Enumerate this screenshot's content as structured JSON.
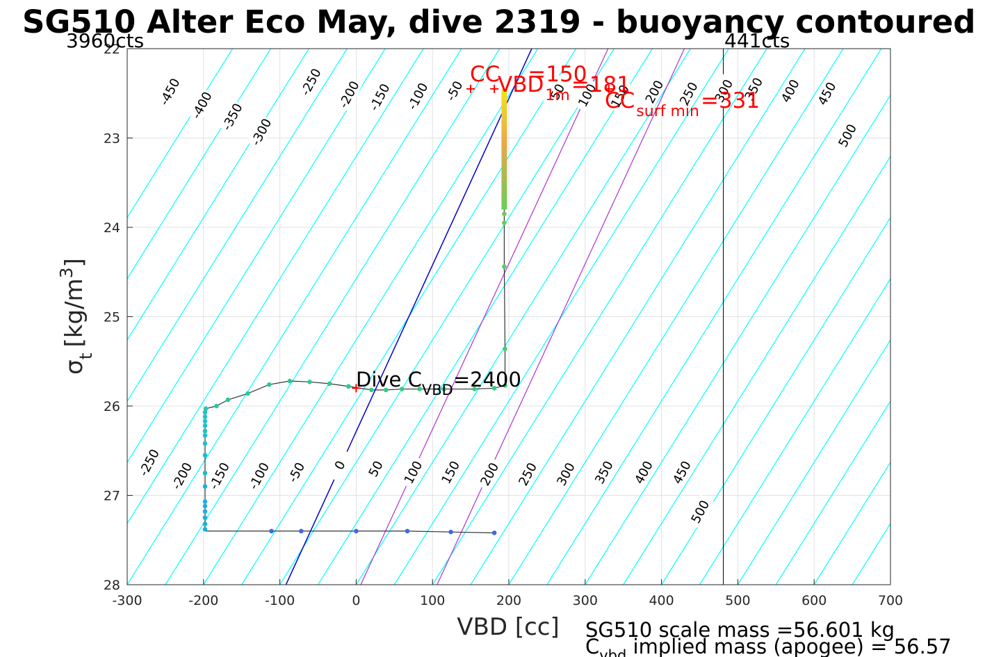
{
  "title": "SG510 Alter Eco May, dive 2319 - buoyancy contoured",
  "counts_left": "3960cts",
  "counts_right": "441cts",
  "xlabel": "VBD [cc]",
  "ylabel_sigma": "σ",
  "ylabel_sub": "t",
  "ylabel_units": "[kg/m",
  "ylabel_sup": "3",
  "ylabel_close": "]",
  "annotations": {
    "cc_label": "CC",
    "cc_value": "=150",
    "vbd_label": "VBD",
    "vbd_sub": "1m",
    "vbd_value": "=181",
    "ccsurf_label": "CC",
    "ccsurf_sub": "surf min",
    "ccsurf_value": "=331",
    "dive_label": "Dive C",
    "dive_sub": "VBD",
    "dive_value": "=2400"
  },
  "footer": {
    "line1": "SG510 scale mass =56.601 kg",
    "line2_prefix": "C",
    "line2_sub": "vbd",
    "line2_rest": " implied mass (apogee) = 56.57"
  },
  "colors": {
    "contour": "#00ffff",
    "blue_line": "#0000cc",
    "magenta_line": "#b030d0",
    "red": "#ff0000",
    "axis": "#262626"
  },
  "chart_data": {
    "type": "scatter",
    "xlim": [
      -300,
      700
    ],
    "ylim": [
      22,
      28
    ],
    "y_reversed": true,
    "xticks": [
      -300,
      -200,
      -100,
      0,
      100,
      200,
      300,
      400,
      500,
      600,
      700
    ],
    "yticks": [
      22,
      23,
      24,
      25,
      26,
      27,
      28
    ],
    "grid": true,
    "contour_slope_cc_per_unit": -73,
    "contour_levels": [
      -450,
      -400,
      -350,
      -300,
      -250,
      -200,
      -150,
      -100,
      -50,
      0,
      50,
      100,
      150,
      200,
      250,
      300,
      350,
      400,
      450,
      500
    ],
    "contour_labels_top": [
      {
        "level": "-450",
        "x": -245,
        "y": 22.48
      },
      {
        "level": "-400",
        "x": -203,
        "y": 22.63
      },
      {
        "level": "-350",
        "x": -163,
        "y": 22.76
      },
      {
        "level": "-300",
        "x": -125,
        "y": 22.93
      },
      {
        "level": "-250",
        "x": -60,
        "y": 22.37
      },
      {
        "level": "-200",
        "x": -10,
        "y": 22.51
      },
      {
        "level": "-150",
        "x": 30,
        "y": 22.54
      },
      {
        "level": "-100",
        "x": 80,
        "y": 22.53
      },
      {
        "level": "-50",
        "x": 128,
        "y": 22.47
      },
      {
        "level": "50",
        "x": 263,
        "y": 22.48
      },
      {
        "level": "100",
        "x": 302,
        "y": 22.52
      },
      {
        "level": "150",
        "x": 345,
        "y": 22.53
      },
      {
        "level": "200",
        "x": 390,
        "y": 22.48
      },
      {
        "level": "250",
        "x": 435,
        "y": 22.5
      },
      {
        "level": "300",
        "x": 481,
        "y": 22.47
      },
      {
        "level": "350",
        "x": 520,
        "y": 22.45
      },
      {
        "level": "400",
        "x": 568,
        "y": 22.47
      },
      {
        "level": "450",
        "x": 616,
        "y": 22.5
      },
      {
        "level": "500",
        "x": 643,
        "y": 22.97
      }
    ],
    "contour_labels_bottom": [
      {
        "level": "-250",
        "x": -272,
        "y": 26.63
      },
      {
        "level": "-200",
        "x": -229,
        "y": 26.78
      },
      {
        "level": "-150",
        "x": -180,
        "y": 26.78
      },
      {
        "level": "-100",
        "x": -128,
        "y": 26.78
      },
      {
        "level": "-50",
        "x": -79,
        "y": 26.74
      },
      {
        "level": "0",
        "x": -22,
        "y": 26.66
      },
      {
        "level": "50",
        "x": 25,
        "y": 26.7
      },
      {
        "level": "100",
        "x": 74,
        "y": 26.74
      },
      {
        "level": "150",
        "x": 123,
        "y": 26.74
      },
      {
        "level": "200",
        "x": 174,
        "y": 26.76
      },
      {
        "level": "250",
        "x": 224,
        "y": 26.76
      },
      {
        "level": "300",
        "x": 274,
        "y": 26.76
      },
      {
        "level": "350",
        "x": 324,
        "y": 26.74
      },
      {
        "level": "400",
        "x": 376,
        "y": 26.74
      },
      {
        "level": "450",
        "x": 426,
        "y": 26.74
      },
      {
        "level": "500",
        "x": 450,
        "y": 27.18
      }
    ],
    "blue_line": {
      "x1": -92,
      "y1": 28,
      "x2": 230,
      "y2": 22
    },
    "magenta_lines": [
      {
        "x1": 6,
        "y1": 28,
        "x2": 330,
        "y2": 22
      },
      {
        "x1": 106,
        "y1": 28,
        "x2": 430,
        "y2": 22
      }
    ],
    "vertical_line_x": 481,
    "track": [
      [
        181,
        27.42
      ],
      [
        124,
        27.41
      ],
      [
        67,
        27.4
      ],
      [
        0,
        27.4
      ],
      [
        -72,
        27.4
      ],
      [
        -111,
        27.4
      ],
      [
        -198,
        27.4
      ],
      [
        -198,
        27.2
      ],
      [
        -198,
        27.0
      ],
      [
        -198,
        26.8
      ],
      [
        -198,
        26.6
      ],
      [
        -198,
        26.4
      ],
      [
        -198,
        26.2
      ],
      [
        -197,
        26.03
      ],
      [
        -183,
        26.0
      ],
      [
        -168,
        25.93
      ],
      [
        -142,
        25.86
      ],
      [
        -114,
        25.76
      ],
      [
        -87,
        25.72
      ],
      [
        -61,
        25.73
      ],
      [
        -35,
        25.75
      ],
      [
        -10,
        25.78
      ],
      [
        20,
        25.82
      ],
      [
        39,
        25.82
      ],
      [
        60,
        25.81
      ],
      [
        83,
        25.81
      ],
      [
        115,
        25.81
      ],
      [
        155,
        25.81
      ],
      [
        181,
        25.8
      ],
      [
        195,
        25.77
      ],
      [
        195,
        25.36
      ],
      [
        194,
        24.44
      ],
      [
        194,
        23.95
      ],
      [
        194,
        23.7
      ],
      [
        194,
        23.2
      ],
      [
        194,
        22.45
      ]
    ],
    "points": [
      {
        "x": 181,
        "y": 27.42,
        "c": "#4169e1"
      },
      {
        "x": 124,
        "y": 27.41,
        "c": "#4169e1"
      },
      {
        "x": 67,
        "y": 27.4,
        "c": "#4169e1"
      },
      {
        "x": 0,
        "y": 27.4,
        "c": "#4169e1"
      },
      {
        "x": -72,
        "y": 27.4,
        "c": "#4169e1"
      },
      {
        "x": -111,
        "y": 27.4,
        "c": "#4169e1"
      },
      {
        "x": -198,
        "y": 27.38,
        "c": "#1faee0"
      },
      {
        "x": -198,
        "y": 27.32,
        "c": "#1faee0"
      },
      {
        "x": -198,
        "y": 27.25,
        "c": "#1faee0"
      },
      {
        "x": -198,
        "y": 27.18,
        "c": "#1faee0"
      },
      {
        "x": -198,
        "y": 27.12,
        "c": "#1faee0"
      },
      {
        "x": -198,
        "y": 27.07,
        "c": "#1faee0"
      },
      {
        "x": -198,
        "y": 26.9,
        "c": "#1faee0"
      },
      {
        "x": -198,
        "y": 26.75,
        "c": "#1fb8d8"
      },
      {
        "x": -198,
        "y": 26.55,
        "c": "#1fb8d8"
      },
      {
        "x": -198,
        "y": 26.42,
        "c": "#1fbfd0"
      },
      {
        "x": -198,
        "y": 26.33,
        "c": "#1fbfd0"
      },
      {
        "x": -198,
        "y": 26.28,
        "c": "#1fbfd0"
      },
      {
        "x": -198,
        "y": 26.22,
        "c": "#1fbfd0"
      },
      {
        "x": -198,
        "y": 26.17,
        "c": "#1fc4c4"
      },
      {
        "x": -198,
        "y": 26.12,
        "c": "#1fc4c4"
      },
      {
        "x": -198,
        "y": 26.07,
        "c": "#1fc4c4"
      },
      {
        "x": -197,
        "y": 26.03,
        "c": "#26c7b8"
      },
      {
        "x": -183,
        "y": 26.0,
        "c": "#2bc89f"
      },
      {
        "x": -168,
        "y": 25.93,
        "c": "#2bc89f"
      },
      {
        "x": -142,
        "y": 25.86,
        "c": "#2bc89f"
      },
      {
        "x": -114,
        "y": 25.76,
        "c": "#30c990"
      },
      {
        "x": -87,
        "y": 25.72,
        "c": "#30c990"
      },
      {
        "x": -61,
        "y": 25.73,
        "c": "#30c990"
      },
      {
        "x": -35,
        "y": 25.75,
        "c": "#30c990"
      },
      {
        "x": -10,
        "y": 25.78,
        "c": "#30c990"
      },
      {
        "x": 20,
        "y": 25.82,
        "c": "#36ca85"
      },
      {
        "x": 39,
        "y": 25.82,
        "c": "#36ca85"
      },
      {
        "x": 60,
        "y": 25.81,
        "c": "#36ca85"
      },
      {
        "x": 83,
        "y": 25.81,
        "c": "#36ca85"
      },
      {
        "x": 115,
        "y": 25.81,
        "c": "#36ca85"
      },
      {
        "x": 155,
        "y": 25.81,
        "c": "#3cca7e"
      },
      {
        "x": 181,
        "y": 25.8,
        "c": "#3cca7e"
      },
      {
        "x": 195,
        "y": 25.77,
        "c": "#3cca7e"
      },
      {
        "x": 195,
        "y": 25.36,
        "c": "#4ccb6f"
      },
      {
        "x": 194,
        "y": 24.44,
        "c": "#5ccb64"
      },
      {
        "x": 194,
        "y": 23.95,
        "c": "#66cc5c"
      },
      {
        "x": 194,
        "y": 23.85,
        "c": "#6ccc58"
      },
      {
        "x": 194,
        "y": 23.78,
        "c": "#6ccc58"
      }
    ],
    "color_bar_segment": {
      "x": 194,
      "y_top": 22.45,
      "y_bottom": 23.8
    },
    "markers": [
      {
        "x": 0,
        "y": 25.8,
        "label": "dive_cvbd"
      },
      {
        "x": 150,
        "y": 22.45,
        "label": "cc"
      },
      {
        "x": 181,
        "y": 22.45,
        "label": "vbd1m"
      },
      {
        "x": 331,
        "y": 22.45,
        "label": "ccsurf"
      }
    ]
  }
}
